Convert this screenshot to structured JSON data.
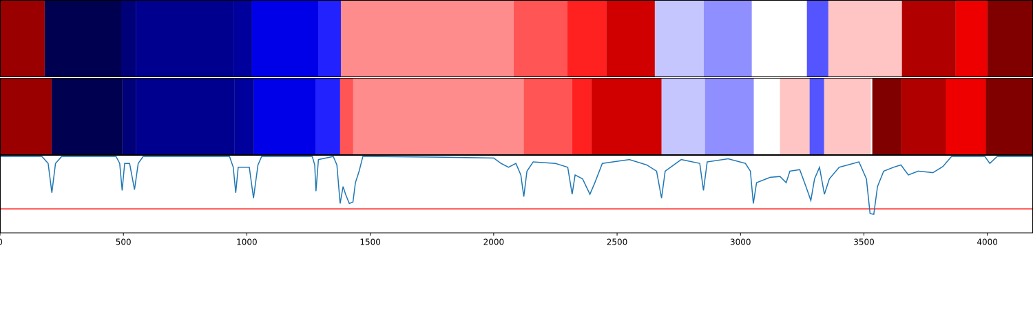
{
  "chart_data": {
    "type": "segmentation",
    "xlim": [
      0,
      4185
    ],
    "xticks": [
      0,
      500,
      1000,
      1500,
      2000,
      2500,
      3000,
      3500,
      4000
    ],
    "rows": [
      {
        "boundaries": [
          0,
          181,
          491,
          550,
          946,
          1021,
          1289,
          1381,
          2081,
          2299,
          2457,
          2653,
          2851,
          3046,
          3269,
          3356,
          3654,
          3872,
          4000,
          4185
        ],
        "colors": [
          "#9b0000",
          "#000050",
          "#000078",
          "#00008f",
          "#00009c",
          "#0000e8",
          "#2222ff",
          "#ff8c8c",
          "#ff5555",
          "#ff2020",
          "#d00000",
          "#c6c6ff",
          "#8f8fff",
          "#ffffff",
          "#5555ff",
          "#ffc4c4",
          "#b00000",
          "#ee0000",
          "#800000"
        ]
      },
      {
        "boundaries": [
          0,
          209,
          496,
          550,
          951,
          1029,
          1280,
          1378,
          1431,
          2122,
          2318,
          2396,
          2680,
          2856,
          3054,
          3160,
          3280,
          3339,
          3528,
          3534,
          3651,
          3832,
          3994,
          4185
        ],
        "colors": [
          "#9b0000",
          "#000050",
          "#000078",
          "#00008f",
          "#00009c",
          "#0000e8",
          "#2222ff",
          "#ff5555",
          "#ff8c8c",
          "#ff5555",
          "#ff2020",
          "#d00000",
          "#c6c6ff",
          "#8f8fff",
          "#ffffff",
          "#ffc4c4",
          "#5555ff",
          "#ffc4c4",
          "#ffffff",
          "#800000",
          "#b00000",
          "#ee0000",
          "#800000"
        ]
      }
    ],
    "ylim": [
      0,
      1
    ],
    "line": {
      "color": "#1f77b4",
      "x": [
        0,
        170,
        195,
        210,
        225,
        250,
        470,
        485,
        495,
        505,
        525,
        545,
        560,
        580,
        930,
        945,
        955,
        965,
        1010,
        1027,
        1045,
        1060,
        1265,
        1275,
        1280,
        1290,
        1350,
        1365,
        1378,
        1390,
        1400,
        1415,
        1430,
        1440,
        1455,
        1470,
        1500,
        1800,
        2000,
        2030,
        2060,
        2090,
        2110,
        2122,
        2135,
        2160,
        2250,
        2300,
        2318,
        2330,
        2360,
        2390,
        2410,
        2440,
        2550,
        2620,
        2660,
        2680,
        2695,
        2760,
        2835,
        2850,
        2865,
        2950,
        3020,
        3040,
        3052,
        3065,
        3120,
        3160,
        3185,
        3200,
        3240,
        3265,
        3285,
        3300,
        3320,
        3340,
        3360,
        3400,
        3480,
        3510,
        3525,
        3540,
        3555,
        3580,
        3620,
        3650,
        3680,
        3720,
        3780,
        3820,
        3855,
        3990,
        4010,
        4040,
        4185
      ],
      "values": [
        0.99,
        0.99,
        0.9,
        0.52,
        0.9,
        0.99,
        0.99,
        0.9,
        0.55,
        0.9,
        0.9,
        0.56,
        0.9,
        0.99,
        0.99,
        0.85,
        0.52,
        0.85,
        0.85,
        0.45,
        0.88,
        0.99,
        0.99,
        0.88,
        0.54,
        0.95,
        0.99,
        0.88,
        0.38,
        0.6,
        0.5,
        0.38,
        0.4,
        0.65,
        0.8,
        0.99,
        0.99,
        0.98,
        0.97,
        0.9,
        0.85,
        0.9,
        0.75,
        0.47,
        0.8,
        0.92,
        0.9,
        0.85,
        0.5,
        0.75,
        0.7,
        0.5,
        0.65,
        0.9,
        0.95,
        0.88,
        0.8,
        0.45,
        0.8,
        0.95,
        0.9,
        0.55,
        0.92,
        0.96,
        0.9,
        0.8,
        0.38,
        0.65,
        0.72,
        0.73,
        0.65,
        0.8,
        0.82,
        0.6,
        0.42,
        0.7,
        0.85,
        0.5,
        0.7,
        0.85,
        0.92,
        0.7,
        0.25,
        0.24,
        0.6,
        0.8,
        0.85,
        0.88,
        0.75,
        0.8,
        0.78,
        0.86,
        0.99,
        0.99,
        0.9,
        0.99,
        0.99
      ]
    },
    "threshold": {
      "value": 0.31,
      "color": "#ff0000"
    }
  }
}
